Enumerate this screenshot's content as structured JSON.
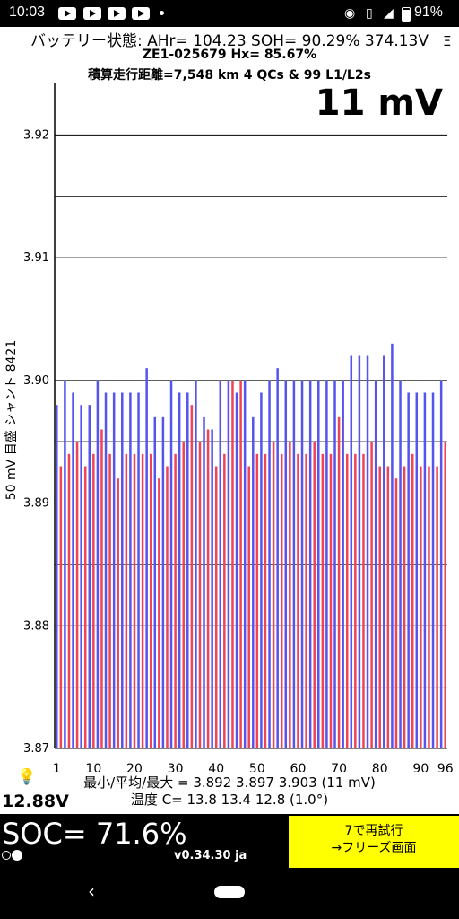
{
  "status_bar": {
    "time": "10:03",
    "battery_percent": "91%",
    "notification_icons": [
      "youtube-icon",
      "youtube-icon",
      "youtube-icon",
      "youtube-icon"
    ],
    "system_icons": [
      "nfc-icon",
      "vibrate-icon",
      "wifi-icon",
      "battery-icon"
    ]
  },
  "header": {
    "line1": "バッテリー状態:  AHr= 104.23  SOH= 90.29%   374.13V",
    "line2": "ZE1-025679   Hx= 85.67%",
    "line3": "積算走行距離=7,548 km  4 QCs & 99 L1/L2s",
    "menu_icon": "Ξ",
    "big_value": "11 mV"
  },
  "chart_data": {
    "type": "bar",
    "ylabel": "50 mV 目盛  シャント 8421",
    "ylim": [
      3.87,
      3.925
    ],
    "y_ticks": [
      "3.87",
      "3.88",
      "3.89",
      "3.90",
      "3.91",
      "3.92"
    ],
    "x_ticks": [
      "1",
      "10",
      "20",
      "30",
      "40",
      "50",
      "60",
      "70",
      "80",
      "90",
      "96"
    ],
    "grid": "horizontal every 0.005",
    "colors": {
      "odd": "#5555ee",
      "even": "#ee4455"
    },
    "x": [
      1,
      2,
      3,
      4,
      5,
      6,
      7,
      8,
      9,
      10,
      11,
      12,
      13,
      14,
      15,
      16,
      17,
      18,
      19,
      20,
      21,
      22,
      23,
      24,
      25,
      26,
      27,
      28,
      29,
      30,
      31,
      32,
      33,
      34,
      35,
      36,
      37,
      38,
      39,
      40,
      41,
      42,
      43,
      44,
      45,
      46,
      47,
      48,
      49,
      50,
      51,
      52,
      53,
      54,
      55,
      56,
      57,
      58,
      59,
      60,
      61,
      62,
      63,
      64,
      65,
      66,
      67,
      68,
      69,
      70,
      71,
      72,
      73,
      74,
      75,
      76,
      77,
      78,
      79,
      80,
      81,
      82,
      83,
      84,
      85,
      86,
      87,
      88,
      89,
      90,
      91,
      92,
      93,
      94,
      95,
      96
    ],
    "values": [
      3.898,
      3.893,
      3.9,
      3.894,
      3.899,
      3.895,
      3.898,
      3.893,
      3.898,
      3.894,
      3.9,
      3.896,
      3.899,
      3.894,
      3.899,
      3.892,
      3.899,
      3.894,
      3.899,
      3.894,
      3.899,
      3.894,
      3.901,
      3.894,
      3.897,
      3.892,
      3.897,
      3.893,
      3.9,
      3.894,
      3.899,
      3.895,
      3.899,
      3.898,
      3.9,
      3.895,
      3.897,
      3.896,
      3.896,
      3.893,
      3.9,
      3.894,
      3.9,
      3.9,
      3.899,
      3.9,
      3.9,
      3.893,
      3.897,
      3.894,
      3.899,
      3.894,
      3.9,
      3.895,
      3.901,
      3.894,
      3.9,
      3.895,
      3.9,
      3.894,
      3.9,
      3.894,
      3.9,
      3.895,
      3.9,
      3.894,
      3.9,
      3.894,
      3.9,
      3.897,
      3.9,
      3.894,
      3.902,
      3.894,
      3.902,
      3.894,
      3.902,
      3.895,
      3.9,
      3.893,
      3.902,
      3.893,
      3.903,
      3.892,
      3.9,
      3.893,
      3.899,
      3.894,
      3.899,
      3.893,
      3.899,
      3.893,
      3.899,
      3.893,
      3.9,
      3.895
    ]
  },
  "stats": {
    "minmax": "最小/平均/最大 = 3.892 3.897 3.903  (11 mV)",
    "temp": "温度 C= 13.8  13.4  12.8  (1.0°)"
  },
  "voltage": "12.88V",
  "soc": "SOC= 71.6%",
  "version": "v0.34.30 ja",
  "retry_button": {
    "line1": "7で再試行",
    "line2": "→フリーズ画面"
  },
  "nav": {
    "back": "‹"
  }
}
